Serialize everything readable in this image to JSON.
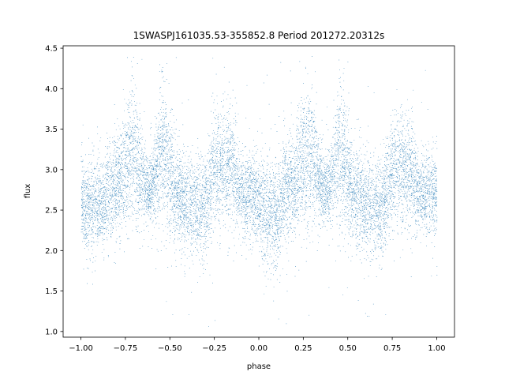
{
  "chart_data": {
    "type": "scatter",
    "title": "1SWASPJ161035.53-355852.8 Period 201272.20312s",
    "xlabel": "phase",
    "ylabel": "flux",
    "xlim": [
      -1.1,
      1.1
    ],
    "ylim": [
      0.93,
      4.53
    ],
    "xticks": [
      -1.0,
      -0.75,
      -0.5,
      -0.25,
      0.0,
      0.25,
      0.5,
      0.75,
      1.0
    ],
    "xtick_labels": [
      "−1.00",
      "−0.75",
      "−0.50",
      "−0.25",
      "0.00",
      "0.25",
      "0.50",
      "0.75",
      "1.00"
    ],
    "yticks": [
      1.0,
      1.5,
      2.0,
      2.5,
      3.0,
      3.5,
      4.0,
      4.5
    ],
    "ytick_labels": [
      "1.0",
      "1.5",
      "2.0",
      "2.5",
      "3.0",
      "3.5",
      "4.0",
      "4.5"
    ],
    "grid": false,
    "marker_color": "#1f77b4",
    "series": [
      {
        "phase_range": [
          -1.0,
          1.0
        ],
        "baseline_flux": 2.65,
        "typical_spread": 0.25,
        "flux_min": 1.05,
        "flux_max": 4.4,
        "point_count": 12000,
        "features": [
          {
            "phase": -0.93,
            "mean_flux": 2.55,
            "spread": 0.28
          },
          {
            "phase": -0.8,
            "mean_flux": 2.75,
            "spread": 0.3
          },
          {
            "phase": -0.72,
            "mean_flux": 3.2,
            "spread": 0.45
          },
          {
            "phase": -0.62,
            "mean_flux": 2.75,
            "spread": 0.2
          },
          {
            "phase": -0.53,
            "mean_flux": 3.3,
            "spread": 0.45
          },
          {
            "phase": -0.47,
            "mean_flux": 2.6,
            "spread": 0.3
          },
          {
            "phase": -0.35,
            "mean_flux": 2.55,
            "spread": 0.3
          },
          {
            "phase": -0.2,
            "mean_flux": 3.0,
            "spread": 0.35
          },
          {
            "phase": -0.05,
            "mean_flux": 2.7,
            "spread": 0.25
          },
          {
            "phase": 0.05,
            "mean_flux": 2.45,
            "spread": 0.35
          },
          {
            "phase": 0.2,
            "mean_flux": 2.8,
            "spread": 0.3
          },
          {
            "phase": 0.27,
            "mean_flux": 3.2,
            "spread": 0.45
          },
          {
            "phase": 0.38,
            "mean_flux": 2.75,
            "spread": 0.2
          },
          {
            "phase": 0.47,
            "mean_flux": 3.3,
            "spread": 0.45
          },
          {
            "phase": 0.53,
            "mean_flux": 2.6,
            "spread": 0.3
          },
          {
            "phase": 0.65,
            "mean_flux": 2.55,
            "spread": 0.3
          },
          {
            "phase": 0.8,
            "mean_flux": 3.0,
            "spread": 0.35
          },
          {
            "phase": 0.95,
            "mean_flux": 2.7,
            "spread": 0.25
          }
        ]
      }
    ]
  }
}
